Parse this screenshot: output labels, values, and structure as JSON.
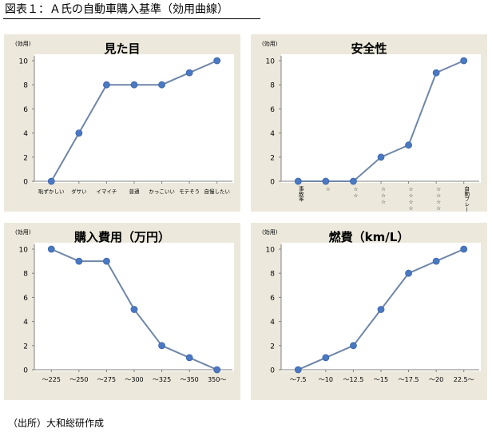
{
  "figure_title": "図表１：Ａ氏の自動車購入基準（効用曲線）",
  "source_note": "（出所）大和総研作成",
  "colors": {
    "panel_bg": "#ece9dc",
    "plot_bg": "#ffffff",
    "line": "#6f86a8",
    "marker": "#4a78c2",
    "axis": "#808080"
  },
  "chart_data": [
    {
      "type": "line",
      "title": "見た目",
      "unit_label": "(効用)",
      "categories": [
        "恥ずかしい",
        "ダサい",
        "イマイチ",
        "普通",
        "かっこいい",
        "モテそう",
        "自慢したい"
      ],
      "values": [
        0,
        4,
        8,
        8,
        8,
        9,
        10
      ],
      "ylim": [
        0,
        10
      ],
      "yticks": [
        "0",
        "2",
        "4",
        "6",
        "8",
        "10"
      ],
      "xtick_vertical": false,
      "grid": false
    },
    {
      "type": "line",
      "title": "安全性",
      "unit_label": "(効用)",
      "categories": [
        "事故率",
        "☆",
        "☆☆",
        "☆☆☆",
        "☆☆☆☆",
        "☆☆☆☆☆",
        "自動ブレーキ機能付"
      ],
      "values": [
        0,
        0,
        0,
        2,
        3,
        9,
        10
      ],
      "ylim": [
        0,
        10
      ],
      "yticks": [
        "0",
        "2",
        "4",
        "6",
        "8",
        "10"
      ],
      "xtick_vertical": true,
      "grid": false
    },
    {
      "type": "line",
      "title": "購入費用（万円）",
      "unit_label": "(効用)",
      "categories": [
        "～225",
        "～250",
        "～275",
        "～300",
        "～325",
        "～350",
        "350～"
      ],
      "values": [
        10,
        9,
        9,
        5,
        2,
        1,
        0
      ],
      "ylim": [
        0,
        10
      ],
      "yticks": [
        "0",
        "2",
        "4",
        "6",
        "8",
        "10"
      ],
      "xtick_vertical": false,
      "grid": false
    },
    {
      "type": "line",
      "title": "燃費（km/L）",
      "unit_label": "(効用)",
      "categories": [
        "～7.5",
        "～10",
        "～12.5",
        "～15",
        "～17.5",
        "～20",
        "22.5～"
      ],
      "values": [
        0,
        1,
        2,
        5,
        8,
        9,
        10
      ],
      "ylim": [
        0,
        10
      ],
      "yticks": [
        "0",
        "2",
        "4",
        "6",
        "8",
        "10"
      ],
      "xtick_vertical": false,
      "grid": false
    }
  ]
}
